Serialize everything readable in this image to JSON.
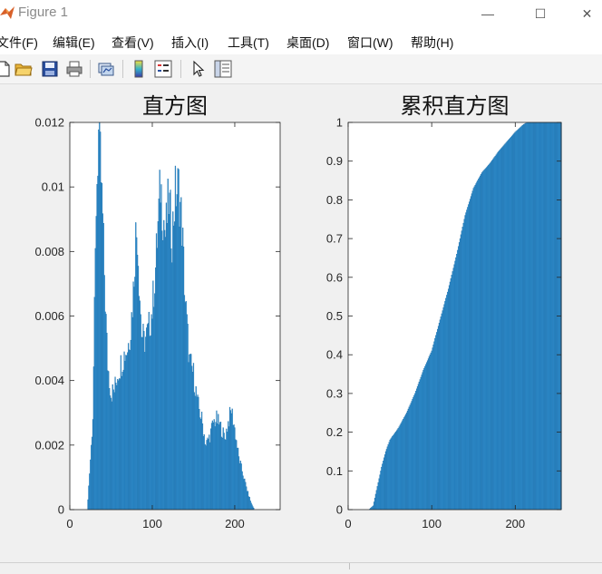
{
  "window": {
    "title": "Figure 1",
    "controls": {
      "minimize": "—",
      "maximize": "☐",
      "close": "✕"
    }
  },
  "menu": {
    "items": [
      "文件(F)",
      "编辑(E)",
      "查看(V)",
      "插入(I)",
      "工具(T)",
      "桌面(D)",
      "窗口(W)",
      "帮助(H)"
    ]
  },
  "toolbar": {
    "tools": [
      "new-file-icon",
      "open-folder-icon",
      "save-icon",
      "print-icon",
      "link-plot-icon",
      "colorbar-icon",
      "legend-icon",
      "pointer-icon",
      "property-editor-icon"
    ]
  },
  "colors": {
    "bar": "#2d8fd1",
    "bar_edge": "#1b6aa3"
  },
  "chart_data": [
    {
      "type": "bar",
      "title": "直方图",
      "xlim": [
        0,
        255
      ],
      "ylim": [
        0,
        0.012
      ],
      "xticks": [
        0,
        100,
        200
      ],
      "yticks": [
        0,
        0.002,
        0.004,
        0.006,
        0.008,
        0.01,
        0.012
      ],
      "ytick_labels": [
        "0",
        "0.002",
        "0.004",
        "0.006",
        "0.008",
        "0.01",
        "0.012"
      ],
      "x_range": [
        22,
        224
      ],
      "profile": [
        [
          20,
          0
        ],
        [
          22,
          0.0003
        ],
        [
          24,
          0.0012
        ],
        [
          26,
          0.002
        ],
        [
          28,
          0.003
        ],
        [
          30,
          0.006
        ],
        [
          32,
          0.0095
        ],
        [
          34,
          0.011
        ],
        [
          35,
          0.0116
        ],
        [
          37,
          0.0108
        ],
        [
          40,
          0.009
        ],
        [
          43,
          0.0065
        ],
        [
          46,
          0.0045
        ],
        [
          50,
          0.0036
        ],
        [
          54,
          0.0037
        ],
        [
          58,
          0.0042
        ],
        [
          62,
          0.0045
        ],
        [
          66,
          0.0048
        ],
        [
          70,
          0.005
        ],
        [
          74,
          0.0056
        ],
        [
          77,
          0.0068
        ],
        [
          80,
          0.0085
        ],
        [
          82,
          0.0086
        ],
        [
          84,
          0.0072
        ],
        [
          87,
          0.0055
        ],
        [
          90,
          0.0052
        ],
        [
          95,
          0.0055
        ],
        [
          100,
          0.0062
        ],
        [
          104,
          0.0075
        ],
        [
          107,
          0.0088
        ],
        [
          110,
          0.0101
        ],
        [
          113,
          0.0092
        ],
        [
          116,
          0.0085
        ],
        [
          120,
          0.0096
        ],
        [
          124,
          0.0085
        ],
        [
          128,
          0.0098
        ],
        [
          132,
          0.01
        ],
        [
          136,
          0.0088
        ],
        [
          140,
          0.0065
        ],
        [
          145,
          0.0046
        ],
        [
          150,
          0.0042
        ],
        [
          155,
          0.0033
        ],
        [
          160,
          0.0028
        ],
        [
          165,
          0.002
        ],
        [
          170,
          0.0023
        ],
        [
          174,
          0.0027
        ],
        [
          178,
          0.0028
        ],
        [
          184,
          0.0025
        ],
        [
          188,
          0.0022
        ],
        [
          192,
          0.0027
        ],
        [
          196,
          0.0031
        ],
        [
          200,
          0.0025
        ],
        [
          205,
          0.0016
        ],
        [
          210,
          0.0011
        ],
        [
          215,
          0.0006
        ],
        [
          220,
          0.0002
        ],
        [
          224,
          0
        ]
      ]
    },
    {
      "type": "bar",
      "title": "累积直方图",
      "xlim": [
        0,
        255
      ],
      "ylim": [
        0,
        1
      ],
      "xticks": [
        0,
        100,
        200
      ],
      "yticks": [
        0,
        0.1,
        0.2,
        0.3,
        0.4,
        0.5,
        0.6,
        0.7,
        0.8,
        0.9,
        1
      ],
      "ytick_labels": [
        "0",
        "0.1",
        "0.2",
        "0.3",
        "0.4",
        "0.5",
        "0.6",
        "0.7",
        "0.8",
        "0.9",
        "1"
      ],
      "x_range": [
        25,
        255
      ],
      "profile": [
        [
          25,
          0
        ],
        [
          30,
          0.01
        ],
        [
          35,
          0.06
        ],
        [
          40,
          0.11
        ],
        [
          45,
          0.15
        ],
        [
          50,
          0.18
        ],
        [
          60,
          0.21
        ],
        [
          70,
          0.25
        ],
        [
          80,
          0.3
        ],
        [
          90,
          0.36
        ],
        [
          100,
          0.41
        ],
        [
          110,
          0.49
        ],
        [
          120,
          0.57
        ],
        [
          130,
          0.66
        ],
        [
          140,
          0.76
        ],
        [
          150,
          0.83
        ],
        [
          160,
          0.87
        ],
        [
          170,
          0.895
        ],
        [
          180,
          0.925
        ],
        [
          190,
          0.95
        ],
        [
          200,
          0.975
        ],
        [
          210,
          0.995
        ],
        [
          215,
          1
        ],
        [
          255,
          1
        ]
      ]
    }
  ]
}
